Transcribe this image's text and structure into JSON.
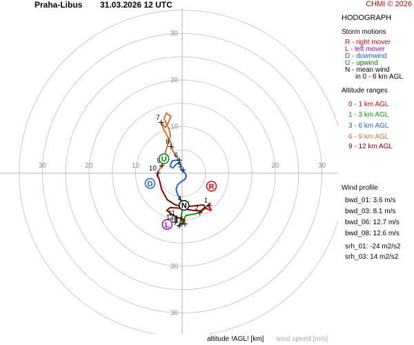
{
  "header": {
    "station": "Praha-Libus",
    "datetime": "31.03.2026 12 UTC",
    "copyright": "CHMI © 2026"
  },
  "panel_title": "HODOGRAPH",
  "storm_motions": {
    "title": "Storm motions",
    "items": [
      {
        "text": "R - right mover",
        "color": "#e00000"
      },
      {
        "text": "L - left mover",
        "color": "#a000c0"
      },
      {
        "text": "D - downwind",
        "color": "#1f5fd0"
      },
      {
        "text": "U - upwind",
        "color": "#008000"
      },
      {
        "text": "N - mean wind",
        "color": "#000000"
      },
      {
        "text": "in 0 - 6 km AGL",
        "color": "#000000"
      }
    ]
  },
  "altitude_ranges": {
    "title": "Altitude ranges",
    "items": [
      {
        "text": "0 - 1 km AGL",
        "color": "#e00000"
      },
      {
        "text": "1 - 3 km AGL",
        "color": "#00a000"
      },
      {
        "text": "3 - 6 km AGL",
        "color": "#1f5fd0"
      },
      {
        "text": "6 - 9 km AGL",
        "color": "#d07030"
      },
      {
        "text": "9 - 12 km AGL",
        "color": "#8b0000"
      }
    ]
  },
  "wind_profile": {
    "title": "Wind profile",
    "items": [
      "bwd_01: 3.6 m/s",
      "bwd_03: 8.1 m/s",
      "bwd_06: 12.7 m/s",
      "bwd_08: 12.6 m/s",
      "srh_01: -24 m2/s2",
      "srh_03: 14 m2/s2"
    ]
  },
  "footer": {
    "altitude_label": "altitude !AGL! [km]",
    "wind_speed_label": "wind speed [m/s]"
  },
  "chart_data": {
    "type": "hodograph",
    "title": "HODOGRAPH",
    "units": "m/s",
    "ring_speeds": [
      5,
      10,
      15,
      20,
      25,
      30,
      35
    ],
    "ring_labels": [
      "10",
      "20",
      "30"
    ],
    "axis_label_values": {
      "top": [
        "30",
        "20",
        "10"
      ],
      "bottom": [
        "10",
        "20",
        "30"
      ],
      "left": [
        "30",
        "20",
        "10"
      ],
      "right": [
        "20",
        "30"
      ]
    },
    "colors": {
      "ring": "#bbbbbb",
      "0-1": "#e00000",
      "1-3": "#00a000",
      "3-6": "#1f5fd0",
      "6-9": "#d07030",
      "9-12": "#8b0000"
    },
    "segments": [
      {
        "range": "0-1",
        "points": [
          [
            6.0,
            -6.5
          ],
          [
            5.2,
            -7.2
          ],
          [
            4.7,
            -7.7
          ],
          [
            5.3,
            -7.6
          ],
          [
            6.2,
            -8.0
          ],
          [
            6.0,
            -7.4
          ],
          [
            5.6,
            -7.0
          ]
        ]
      },
      {
        "range": "1-3",
        "points": [
          [
            5.6,
            -7.0
          ],
          [
            4.8,
            -7.5
          ],
          [
            4.2,
            -8.2
          ],
          [
            3.0,
            -8.7
          ],
          [
            1.8,
            -8.9
          ],
          [
            0.8,
            -9.1
          ],
          [
            0.3,
            -10.0
          ],
          [
            0.2,
            -11.0
          ],
          [
            -0.4,
            -10.7
          ],
          [
            -0.3,
            -10.0
          ],
          [
            0.0,
            -8.0
          ],
          [
            0.2,
            -6.5
          ]
        ]
      },
      {
        "range": "3-6",
        "points": [
          [
            0.2,
            -6.5
          ],
          [
            -0.5,
            -5.5
          ],
          [
            -1.0,
            -4.5
          ],
          [
            -1.3,
            -3.5
          ],
          [
            -1.0,
            -2.5
          ],
          [
            -0.2,
            -1.8
          ],
          [
            0.6,
            -1.3
          ],
          [
            0.9,
            -0.6
          ],
          [
            0.5,
            0.2
          ],
          [
            -0.2,
            0.7
          ],
          [
            -0.3,
            1.8
          ],
          [
            -0.5,
            2.4
          ],
          [
            -1.2,
            2.0
          ],
          [
            -2.0,
            1.1
          ],
          [
            -2.6,
            1.5
          ],
          [
            -2.2,
            2.6
          ],
          [
            -1.3,
            2.8
          ],
          [
            -0.6,
            2.8
          ]
        ]
      },
      {
        "range": "6-9",
        "points": [
          [
            -0.6,
            2.8
          ],
          [
            -1.3,
            3.6
          ],
          [
            -2.0,
            4.8
          ],
          [
            -2.4,
            6.5
          ],
          [
            -3.2,
            8.0
          ],
          [
            -4.0,
            9.5
          ],
          [
            -4.5,
            10.9
          ],
          [
            -3.6,
            9.8
          ],
          [
            -3.0,
            10.8
          ],
          [
            -2.4,
            12.2
          ],
          [
            -3.4,
            12.9
          ],
          [
            -3.9,
            11.7
          ],
          [
            -3.3,
            10.4
          ],
          [
            -2.8,
            9.5
          ],
          [
            -2.5,
            8.0
          ],
          [
            -3.0,
            6.5
          ],
          [
            -3.5,
            4.8
          ],
          [
            -3.8,
            3.3
          ],
          [
            -4.3,
            1.8
          ],
          [
            -4.9,
            0.7
          ],
          [
            -5.2,
            0.0
          ]
        ]
      },
      {
        "range": "9-12",
        "points": [
          [
            -5.2,
            0.0
          ],
          [
            -5.4,
            -0.5
          ],
          [
            -5.0,
            -1.1
          ],
          [
            -4.4,
            -3.5
          ],
          [
            -3.2,
            -5.7
          ],
          [
            -1.5,
            -6.8
          ],
          [
            0.5,
            -7.2
          ],
          [
            2.8,
            -7.0
          ],
          [
            4.6,
            -6.8
          ],
          [
            4.9,
            -7.3
          ],
          [
            4.0,
            -8.1
          ],
          [
            2.4,
            -8.0
          ],
          [
            -0.5,
            -7.5
          ],
          [
            -2.6,
            -7.4
          ],
          [
            -3.3,
            -8.0
          ],
          [
            -2.0,
            -9.0
          ],
          [
            -1.0,
            -9.5
          ],
          [
            0.5,
            -10.0
          ],
          [
            0.3,
            -10.5
          ],
          [
            -0.8,
            -11.3
          ]
        ]
      }
    ],
    "height_markers": [
      {
        "label": "1",
        "u": 5.8,
        "v": -6.9
      },
      {
        "label": "2",
        "u": 3.8,
        "v": -8.5
      },
      {
        "label": "3",
        "u": -0.6,
        "v": -11.3
      },
      {
        "label": "4",
        "u": 0.2,
        "v": -6.5
      },
      {
        "label": "5",
        "u": 0.2,
        "v": 0.7
      },
      {
        "label": "6",
        "u": -0.6,
        "v": 2.8
      },
      {
        "label": "7",
        "u": -4.5,
        "v": 10.9
      },
      {
        "label": "8",
        "u": -2.4,
        "v": 5.7
      },
      {
        "label": "9",
        "u": -4.3,
        "v": 1.6
      },
      {
        "label": "10",
        "u": -5.2,
        "v": 0.0
      },
      {
        "label": "11",
        "u": -1.2,
        "v": -9.6
      },
      {
        "label": "12",
        "u": -1.5,
        "v": -10.5
      },
      {
        "label": "1",
        "u": 0.6,
        "v": -10.9
      }
    ],
    "storm_points": [
      {
        "label": "R",
        "u": 6.3,
        "v": -2.8,
        "color": "#e00000"
      },
      {
        "label": "L",
        "u": -3.2,
        "v": -11.0,
        "color": "#a000c0"
      },
      {
        "label": "D",
        "u": -6.9,
        "v": -2.2,
        "color": "#1f5fd0"
      },
      {
        "label": "U",
        "u": -3.9,
        "v": 3.1,
        "color": "#008000"
      },
      {
        "label": "N",
        "u": 0.4,
        "v": -6.9,
        "color": "#000000"
      }
    ]
  }
}
